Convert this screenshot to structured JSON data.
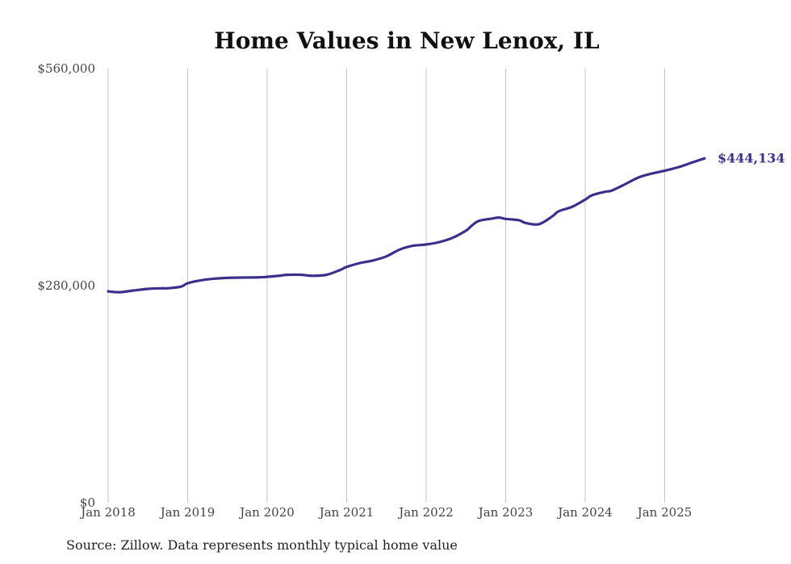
{
  "chart_data": {
    "type": "line",
    "title": "Home Values in New Lenox, IL",
    "xlabel": "",
    "ylabel": "",
    "ylim": [
      0,
      560000
    ],
    "y_ticks": [
      {
        "value": 0,
        "label": "$0"
      },
      {
        "value": 280000,
        "label": "$280,000"
      },
      {
        "value": 560000,
        "label": "$560,000"
      }
    ],
    "x_ticks": [
      {
        "year": 2018,
        "label": "Jan 2018"
      },
      {
        "year": 2019,
        "label": "Jan 2019"
      },
      {
        "year": 2020,
        "label": "Jan 2020"
      },
      {
        "year": 2021,
        "label": "Jan 2021"
      },
      {
        "year": 2022,
        "label": "Jan 2022"
      },
      {
        "year": 2023,
        "label": "Jan 2023"
      },
      {
        "year": 2024,
        "label": "Jan 2024"
      },
      {
        "year": 2025,
        "label": "Jan 2025"
      }
    ],
    "grid": "vertical",
    "line_color": "#3b318c",
    "series": [
      {
        "name": "",
        "x": [
          "2018-01",
          "2018-02",
          "2018-03",
          "2018-05",
          "2018-07",
          "2018-09",
          "2018-10",
          "2018-12",
          "2019-01",
          "2019-03",
          "2019-05",
          "2019-07",
          "2019-09",
          "2019-12",
          "2020-01",
          "2020-03",
          "2020-04",
          "2020-06",
          "2020-07",
          "2020-08",
          "2020-10",
          "2020-12",
          "2021-01",
          "2021-03",
          "2021-05",
          "2021-07",
          "2021-09",
          "2021-11",
          "2022-01",
          "2022-03",
          "2022-05",
          "2022-07",
          "2022-08",
          "2022-09",
          "2022-11",
          "2022-12",
          "2023-01",
          "2023-03",
          "2023-04",
          "2023-06",
          "2023-08",
          "2023-09",
          "2023-11",
          "2024-01",
          "2024-02",
          "2024-04",
          "2024-05",
          "2024-07",
          "2024-09",
          "2024-11",
          "2025-01",
          "2025-03",
          "2025-05",
          "2025-07"
        ],
        "values": [
          272600,
          271700,
          271700,
          273900,
          275800,
          276600,
          276600,
          278700,
          283100,
          286900,
          288900,
          290000,
          290400,
          290800,
          291300,
          292900,
          293900,
          294100,
          293200,
          292700,
          294100,
          300200,
          304100,
          309100,
          312500,
          317800,
          326500,
          331400,
          333100,
          336200,
          341700,
          350900,
          358300,
          363700,
          366600,
          367800,
          366100,
          364400,
          360900,
          359200,
          369200,
          376000,
          381600,
          391000,
          396500,
          401100,
          402600,
          410700,
          419400,
          424500,
          428200,
          432600,
          438400,
          444134
        ]
      }
    ],
    "last_value_label": "$444,134",
    "source": "Source: Zillow. Data represents monthly typical home value"
  }
}
